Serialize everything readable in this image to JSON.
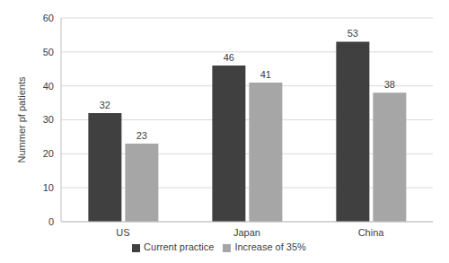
{
  "chart_data": {
    "type": "bar",
    "y_label": "Nummer pf patients",
    "categories": [
      "US",
      "Japan",
      "China"
    ],
    "series": [
      {
        "name": "Current practice",
        "color": "#404040",
        "values": [
          32,
          46,
          53
        ]
      },
      {
        "name": "Increase of 35%",
        "color": "#a6a6a6",
        "values": [
          23,
          41,
          38
        ]
      }
    ],
    "ylim": [
      0,
      60
    ],
    "yticks": [
      0,
      10,
      20,
      30,
      40,
      50,
      60
    ],
    "grid": true,
    "data_labels": true,
    "legend": "bottom"
  }
}
